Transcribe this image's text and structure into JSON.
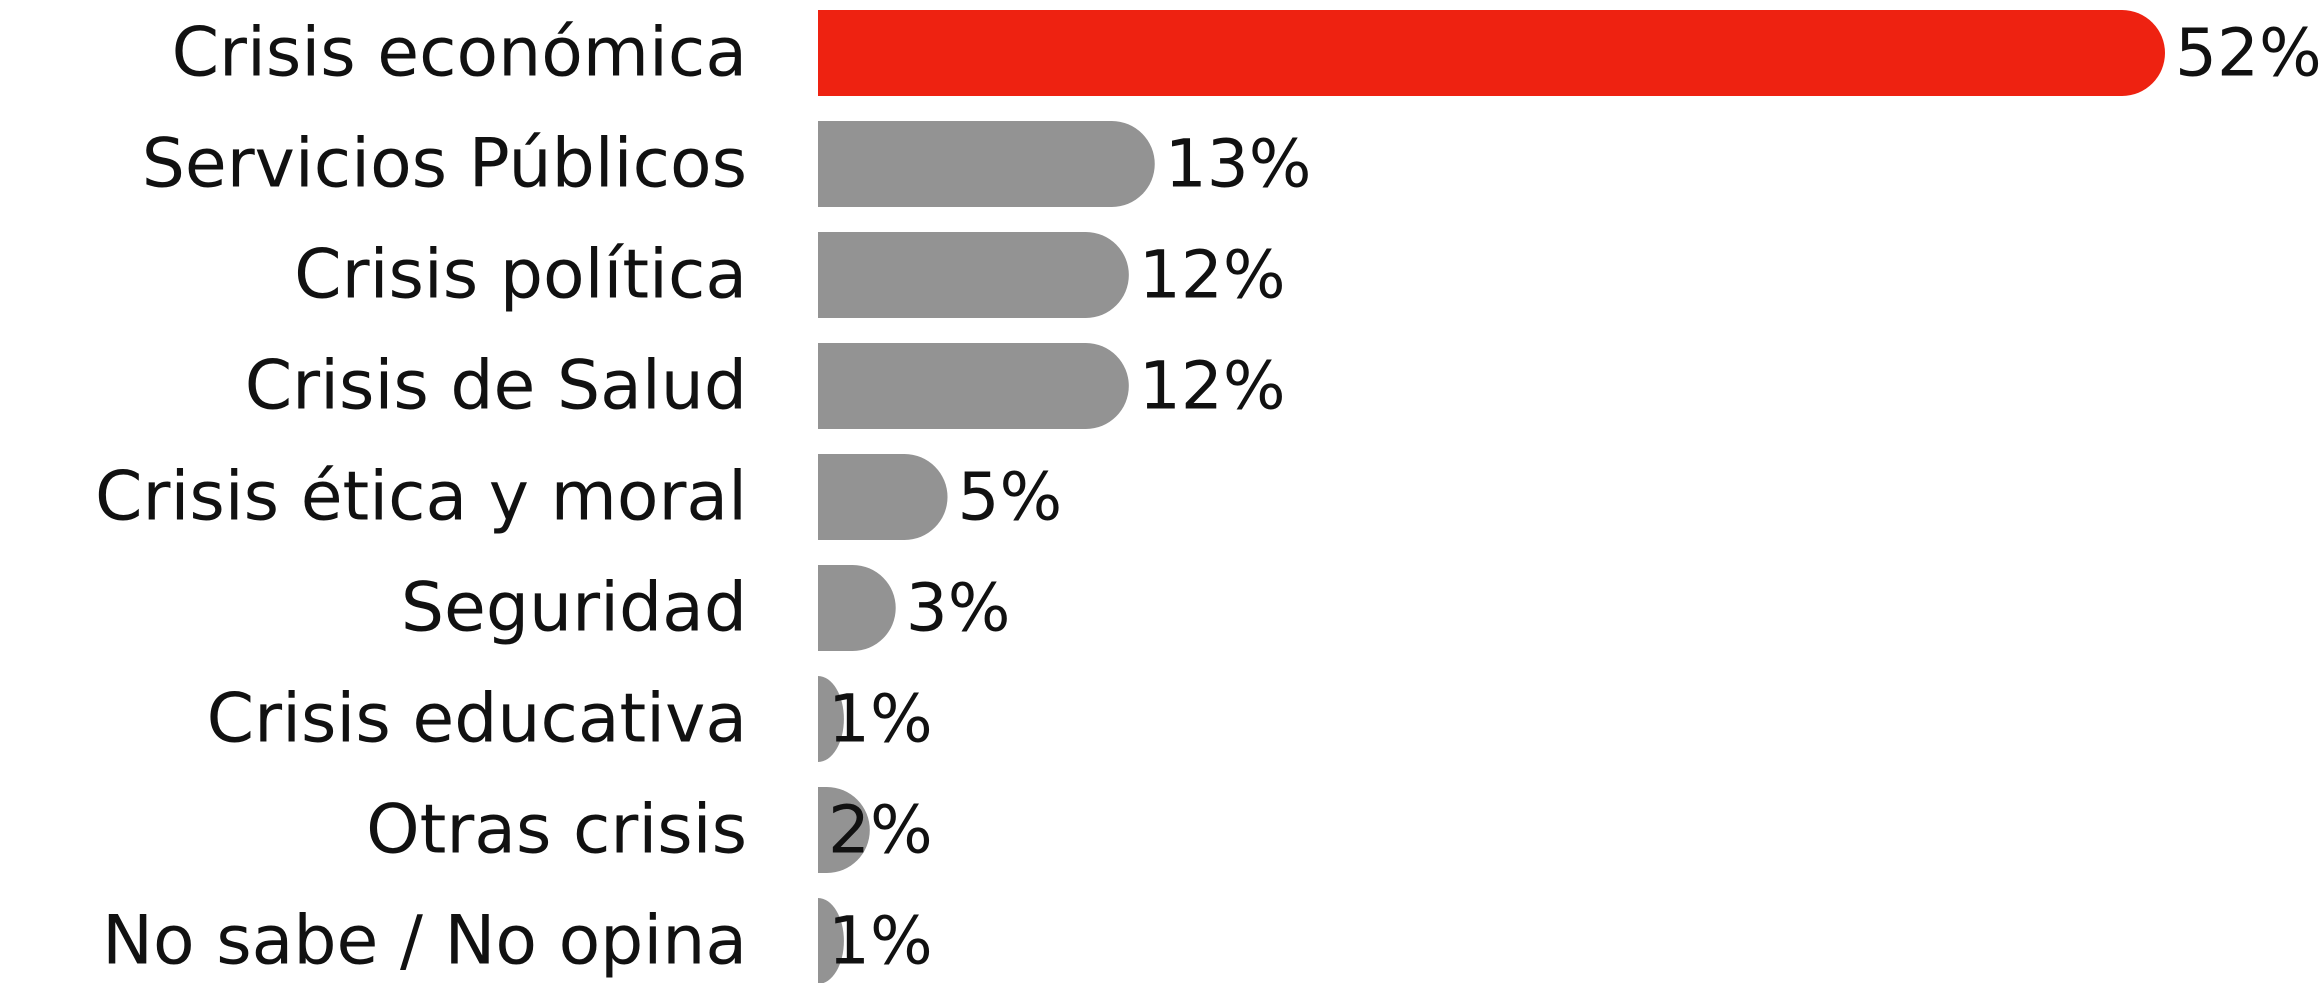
{
  "chart_data": {
    "type": "bar",
    "orientation": "horizontal",
    "categories": [
      "Crisis económica",
      "Servicios Públicos",
      "Crisis política",
      "Crisis de Salud",
      "Crisis ética y moral",
      "Seguridad",
      "Crisis educativa",
      "Otras crisis",
      "No sabe / No opina"
    ],
    "values": [
      52,
      13,
      12,
      12,
      5,
      3,
      1,
      2,
      1
    ],
    "value_labels": [
      "52%",
      "13%",
      "12%",
      "12%",
      "5%",
      "3%",
      "1%",
      "2%",
      "1%"
    ],
    "colors": [
      "#ee2211",
      "#939393",
      "#939393",
      "#939393",
      "#939393",
      "#939393",
      "#939393",
      "#939393",
      "#939393"
    ]
  }
}
